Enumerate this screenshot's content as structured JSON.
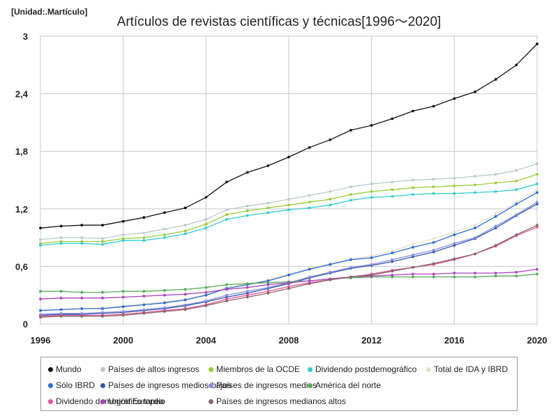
{
  "unit_label": "[Unidad:.Martículo]",
  "chart_data": {
    "type": "line",
    "title": "Artículos de revistas científicas y técnicas[1996～2020]",
    "xlabel": "",
    "ylabel": "",
    "x": [
      1996,
      1997,
      1998,
      1999,
      2000,
      2001,
      2002,
      2003,
      2004,
      2005,
      2006,
      2007,
      2008,
      2009,
      2010,
      2011,
      2012,
      2013,
      2014,
      2015,
      2016,
      2017,
      2018,
      2019,
      2020
    ],
    "xlim": [
      1996,
      2020
    ],
    "ylim": [
      0,
      3
    ],
    "x_ticks": [
      1996,
      2000,
      2004,
      2008,
      2012,
      2016,
      2020
    ],
    "y_ticks": [
      0,
      0.6,
      1.2,
      1.8,
      2.4,
      3
    ],
    "y_tick_labels": [
      "0",
      "0,6",
      "1,2",
      "1,8",
      "2,4",
      "3"
    ],
    "grid": true,
    "legend_position": "bottom",
    "series": [
      {
        "name": "Mundo",
        "color": "#111111",
        "values": [
          1.0,
          1.02,
          1.03,
          1.03,
          1.07,
          1.11,
          1.16,
          1.21,
          1.32,
          1.48,
          1.58,
          1.65,
          1.74,
          1.84,
          1.92,
          2.02,
          2.07,
          2.14,
          2.22,
          2.27,
          2.35,
          2.42,
          2.55,
          2.7,
          2.92
        ]
      },
      {
        "name": "Países de altos ingresos",
        "color": "#b8c9cc",
        "values": [
          0.88,
          0.9,
          0.9,
          0.89,
          0.93,
          0.95,
          0.99,
          1.03,
          1.09,
          1.19,
          1.23,
          1.26,
          1.3,
          1.34,
          1.38,
          1.43,
          1.46,
          1.48,
          1.5,
          1.51,
          1.52,
          1.54,
          1.56,
          1.6,
          1.67
        ]
      },
      {
        "name": "Miembros de la OCDE",
        "color": "#99cc33",
        "values": [
          0.84,
          0.86,
          0.86,
          0.86,
          0.89,
          0.9,
          0.93,
          0.97,
          1.04,
          1.14,
          1.18,
          1.21,
          1.24,
          1.27,
          1.3,
          1.35,
          1.38,
          1.4,
          1.42,
          1.43,
          1.44,
          1.45,
          1.47,
          1.49,
          1.56
        ]
      },
      {
        "name": "Dividendo postdemográfico",
        "color": "#33cccc",
        "values": [
          0.82,
          0.84,
          0.84,
          0.83,
          0.87,
          0.87,
          0.9,
          0.94,
          1.0,
          1.09,
          1.13,
          1.16,
          1.19,
          1.21,
          1.24,
          1.29,
          1.32,
          1.33,
          1.35,
          1.36,
          1.36,
          1.37,
          1.38,
          1.4,
          1.46
        ]
      },
      {
        "name": "Total de IDA y IBRD",
        "color": "#eadfcf",
        "values": [
          0.14,
          0.15,
          0.16,
          0.17,
          0.19,
          0.21,
          0.23,
          0.26,
          0.31,
          0.38,
          0.42,
          0.46,
          0.52,
          0.58,
          0.63,
          0.68,
          0.71,
          0.76,
          0.83,
          0.89,
          0.96,
          1.03,
          1.15,
          1.27,
          1.4
        ]
      },
      {
        "name": "Sólo IBRD",
        "color": "#2a6bd1",
        "values": [
          0.14,
          0.15,
          0.16,
          0.16,
          0.18,
          0.2,
          0.22,
          0.25,
          0.3,
          0.37,
          0.41,
          0.45,
          0.51,
          0.57,
          0.62,
          0.67,
          0.69,
          0.74,
          0.8,
          0.85,
          0.93,
          1.0,
          1.12,
          1.25,
          1.37
        ]
      },
      {
        "name": "Países de ingresos medios-bajos",
        "color": "#3355aa",
        "values": [
          0.09,
          0.1,
          0.1,
          0.11,
          0.12,
          0.14,
          0.16,
          0.19,
          0.23,
          0.28,
          0.32,
          0.37,
          0.42,
          0.48,
          0.53,
          0.58,
          0.61,
          0.65,
          0.7,
          0.75,
          0.82,
          0.89,
          1.0,
          1.13,
          1.25
        ]
      },
      {
        "name": "Países de ingresos medios",
        "color": "#8a8ee0",
        "values": [
          0.1,
          0.11,
          0.11,
          0.12,
          0.13,
          0.15,
          0.17,
          0.2,
          0.24,
          0.3,
          0.34,
          0.38,
          0.43,
          0.49,
          0.54,
          0.59,
          0.62,
          0.67,
          0.72,
          0.77,
          0.84,
          0.9,
          1.02,
          1.14,
          1.27
        ]
      },
      {
        "name": "América del norte",
        "color": "#55aa55",
        "values": [
          0.34,
          0.34,
          0.33,
          0.33,
          0.34,
          0.34,
          0.35,
          0.36,
          0.38,
          0.41,
          0.42,
          0.43,
          0.44,
          0.45,
          0.47,
          0.48,
          0.49,
          0.49,
          0.49,
          0.49,
          0.49,
          0.49,
          0.5,
          0.5,
          0.52
        ]
      },
      {
        "name": "Dividendo demográfico tardío",
        "color": "#e0559a",
        "values": [
          0.08,
          0.09,
          0.09,
          0.09,
          0.1,
          0.12,
          0.14,
          0.16,
          0.2,
          0.26,
          0.3,
          0.34,
          0.39,
          0.43,
          0.46,
          0.49,
          0.52,
          0.56,
          0.59,
          0.62,
          0.67,
          0.73,
          0.81,
          0.92,
          1.01
        ]
      },
      {
        "name": "Unión Europea",
        "color": "#aa44bb",
        "values": [
          0.26,
          0.27,
          0.27,
          0.27,
          0.28,
          0.29,
          0.3,
          0.31,
          0.33,
          0.36,
          0.38,
          0.41,
          0.43,
          0.45,
          0.47,
          0.49,
          0.5,
          0.51,
          0.52,
          0.52,
          0.53,
          0.53,
          0.53,
          0.54,
          0.57
        ]
      },
      {
        "name": "Países de ingresos medianos altos",
        "color": "#886666",
        "values": [
          0.07,
          0.08,
          0.08,
          0.08,
          0.09,
          0.11,
          0.13,
          0.15,
          0.19,
          0.24,
          0.28,
          0.32,
          0.37,
          0.42,
          0.46,
          0.49,
          0.51,
          0.55,
          0.59,
          0.63,
          0.68,
          0.73,
          0.82,
          0.93,
          1.03
        ]
      }
    ]
  }
}
